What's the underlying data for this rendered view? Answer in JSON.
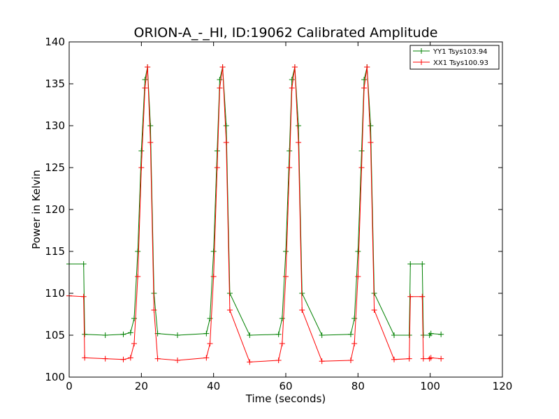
{
  "chart_data": {
    "type": "line",
    "title": "ORION-A_-_HI, ID:19062 Calibrated Amplitude",
    "xlabel": "Time (seconds)",
    "ylabel": "Power in Kelvin",
    "xlim": [
      0,
      120
    ],
    "ylim": [
      100,
      140
    ],
    "xticks": [
      "0",
      "20",
      "40",
      "60",
      "80",
      "100",
      "120"
    ],
    "yticks": [
      "100",
      "105",
      "110",
      "115",
      "120",
      "125",
      "130",
      "135",
      "140"
    ],
    "grid": false,
    "legend_position": "top-right",
    "marker": "plus",
    "series": [
      {
        "name": "YY1 Tsys103.94",
        "color": "#008000",
        "x": [
          0,
          4,
          4.3,
          10,
          15,
          17,
          18,
          19,
          20,
          21,
          21.7,
          22.5,
          23.5,
          24.5,
          30,
          38,
          39,
          40,
          41,
          41.7,
          42.5,
          43.5,
          44.5,
          50,
          58,
          59,
          60,
          61,
          61.7,
          62.5,
          63.5,
          64.5,
          70,
          78,
          79,
          80,
          81,
          81.7,
          82.5,
          83.5,
          84.5,
          90,
          94.2,
          94.5,
          97.8,
          98.1,
          99.8,
          100.2,
          103
        ],
        "y": [
          113.5,
          113.5,
          105.1,
          105.0,
          105.1,
          105.3,
          107,
          115,
          127,
          135.5,
          137,
          130,
          110,
          105.2,
          105.0,
          105.2,
          107,
          115,
          127,
          135.5,
          137,
          130,
          110,
          105.0,
          105.1,
          107,
          115,
          127,
          135.5,
          137,
          130,
          110,
          105.0,
          105.1,
          107,
          115,
          127,
          135.5,
          137,
          130,
          110,
          105.0,
          105.0,
          113.5,
          113.5,
          105.0,
          105.0,
          105.2,
          105.1
        ]
      },
      {
        "name": "XX1 Tsys100.93",
        "color": "#ff0000",
        "x": [
          0,
          4,
          4.3,
          10,
          15,
          17,
          18,
          19,
          20,
          21,
          21.7,
          22.5,
          23.5,
          24.5,
          30,
          38,
          39,
          40,
          41,
          41.7,
          42.5,
          43.5,
          44.5,
          50,
          58,
          59,
          60,
          61,
          61.7,
          62.5,
          63.5,
          64.5,
          70,
          78,
          79,
          80,
          81,
          81.7,
          82.5,
          83.5,
          84.5,
          90,
          94.2,
          94.5,
          97.8,
          98.1,
          99.8,
          100.2,
          103
        ],
        "y": [
          109.7,
          109.6,
          102.3,
          102.2,
          102.1,
          102.3,
          104,
          112,
          125,
          134.5,
          137,
          128,
          108,
          102.2,
          102.0,
          102.3,
          104,
          112,
          125,
          134.5,
          137,
          128,
          108,
          101.8,
          102.0,
          104,
          112,
          125,
          134.5,
          137,
          128,
          108,
          101.9,
          102.0,
          104,
          112,
          125,
          134.5,
          137,
          128,
          108,
          102.1,
          102.2,
          109.6,
          109.6,
          102.2,
          102.2,
          102.3,
          102.2
        ]
      }
    ]
  }
}
